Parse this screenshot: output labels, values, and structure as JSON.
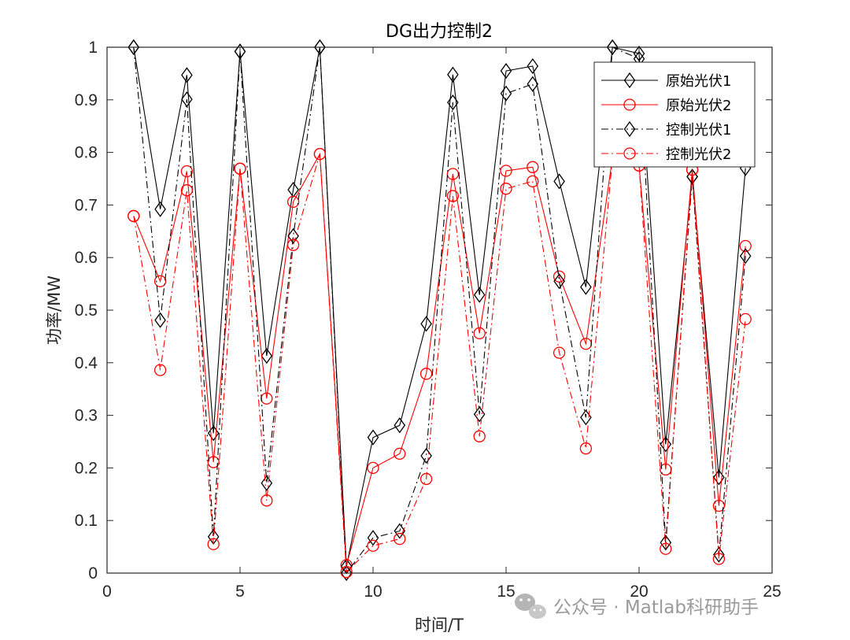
{
  "chart_data": {
    "type": "line",
    "title": "DG出力控制2",
    "xlabel": "时间/T",
    "ylabel": "功率/MW",
    "xlim": [
      0,
      25
    ],
    "ylim": [
      0,
      1
    ],
    "xticks": [
      0,
      5,
      10,
      15,
      20,
      25
    ],
    "yticks": [
      0,
      0.1,
      0.2,
      0.3,
      0.4,
      0.5,
      0.6,
      0.7,
      0.8,
      0.9,
      1
    ],
    "x": [
      1,
      2,
      3,
      4,
      5,
      6,
      7,
      8,
      9,
      10,
      11,
      12,
      13,
      14,
      15,
      16,
      17,
      18,
      19,
      20,
      21,
      22,
      23,
      24
    ],
    "grid": false,
    "legend_position": "top-right",
    "series": [
      {
        "name": "原始光伏1",
        "color": "#000000",
        "line": "solid",
        "marker": "diamond",
        "values": [
          1.0,
          0.692,
          0.947,
          0.266,
          0.992,
          0.413,
          0.729,
          1.0,
          0.013,
          0.258,
          0.281,
          0.474,
          0.948,
          0.529,
          0.955,
          0.964,
          0.745,
          0.544,
          1.0,
          0.988,
          0.245,
          0.754,
          0.182,
          0.77
        ]
      },
      {
        "name": "原始光伏2",
        "color": "#ff0000",
        "line": "solid",
        "marker": "circle",
        "values": [
          0.679,
          0.555,
          0.764,
          0.211,
          0.769,
          0.332,
          0.706,
          0.797,
          0.015,
          0.2,
          0.227,
          0.379,
          0.759,
          0.456,
          0.765,
          0.772,
          0.564,
          0.436,
          0.79,
          0.775,
          0.197,
          0.767,
          0.128,
          0.622
        ]
      },
      {
        "name": "控制光伏1",
        "color": "#000000",
        "line": "dashdot",
        "marker": "diamond",
        "values": [
          1.0,
          0.481,
          0.901,
          0.069,
          0.992,
          0.171,
          0.641,
          1.0,
          0.0,
          0.067,
          0.08,
          0.223,
          0.895,
          0.302,
          0.912,
          0.93,
          0.555,
          0.296,
          1.0,
          0.978,
          0.058,
          0.754,
          0.035,
          0.603
        ]
      },
      {
        "name": "控制光伏2",
        "color": "#ff0000",
        "line": "dashdot",
        "marker": "circle",
        "values": [
          0.679,
          0.386,
          0.728,
          0.055,
          0.769,
          0.138,
          0.624,
          0.797,
          0.002,
          0.052,
          0.065,
          0.179,
          0.717,
          0.26,
          0.731,
          0.745,
          0.419,
          0.237,
          0.79,
          0.775,
          0.046,
          0.767,
          0.027,
          0.483
        ]
      }
    ]
  },
  "watermark": {
    "text": "公众号 · Matlab科研助手",
    "icon": "wechat-icon"
  }
}
